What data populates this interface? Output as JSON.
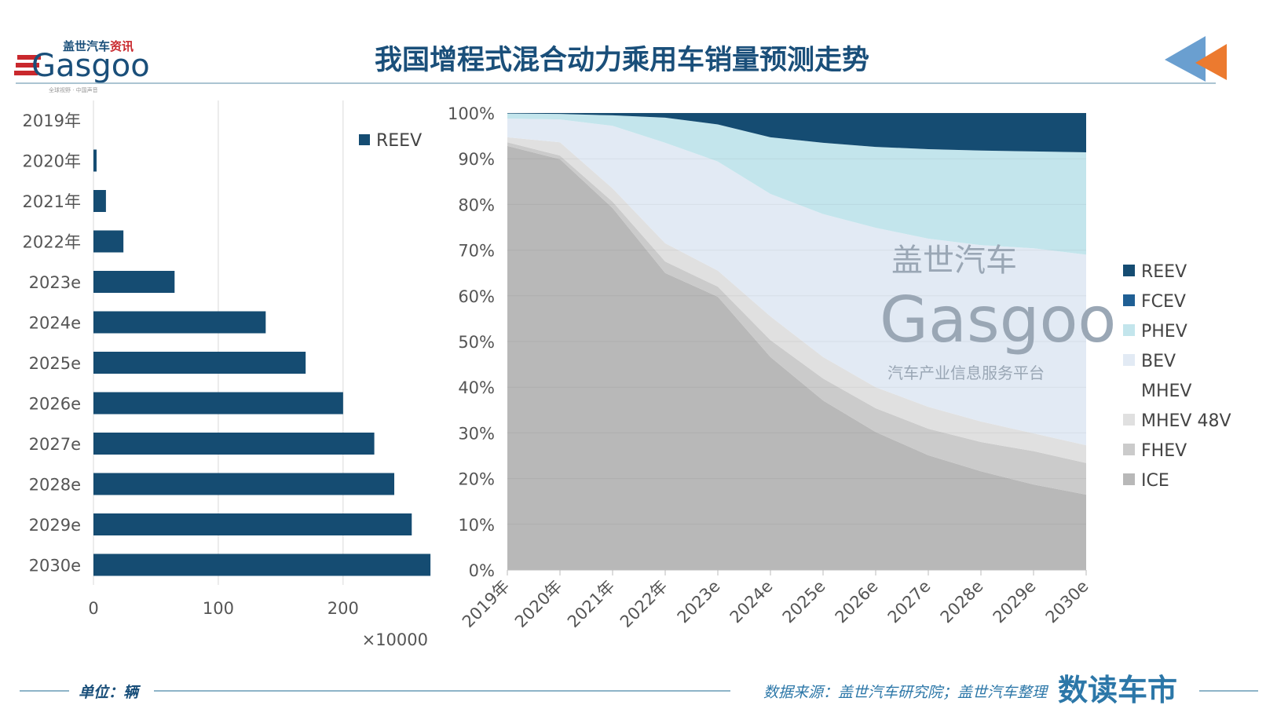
{
  "header": {
    "title": "我国增程式混合动力乘用车销量预测走势",
    "logo_text": "Gasgoo",
    "logo_cn": "盖世汽车资讯",
    "logo_tagline": "全球视野·中国声音",
    "title_color": "#1a4f7a"
  },
  "footer": {
    "unit": "单位：辆",
    "source": "数据来源：盖世汽车研究院；盖世汽车整理",
    "brand": "数读车市"
  },
  "watermark": {
    "text": "Gasgoo",
    "cn": "盖世汽车",
    "tagline": "汽车产业信息服务平台"
  },
  "chart_data": [
    {
      "type": "bar",
      "orientation": "horizontal",
      "categories": [
        "2019年",
        "2020年",
        "2021年",
        "2022年",
        "2023e",
        "2024e",
        "2025e",
        "2026e",
        "2027e",
        "2028e",
        "2029e",
        "2030e"
      ],
      "series": [
        {
          "name": "REEV",
          "values": [
            0,
            2.5,
            10,
            24,
            65,
            138,
            170,
            200,
            225,
            241,
            255,
            270
          ],
          "color": "#154c72"
        }
      ],
      "x_ticks": [
        "0",
        "100",
        "200"
      ],
      "xlim": [
        0,
        280
      ],
      "x_unit_label": "×10000",
      "legend_placement": "top-right",
      "grid": "vertical"
    },
    {
      "type": "area",
      "stacked": "percent",
      "categories": [
        "2019年",
        "2020年",
        "2021年",
        "2022年",
        "2023e",
        "2024e",
        "2025e",
        "2026e",
        "2027e",
        "2028e",
        "2029e",
        "2030e"
      ],
      "y_ticks": [
        "0%",
        "10%",
        "20%",
        "30%",
        "40%",
        "50%",
        "60%",
        "70%",
        "80%",
        "90%",
        "100%"
      ],
      "ylim": [
        0,
        100
      ],
      "grid": "horizontal",
      "legend_placement": "right",
      "series": [
        {
          "name": "ICE",
          "color": "#b8b8b8",
          "values": [
            92.8,
            89.9,
            79.2,
            65.0,
            59.8,
            46.6,
            37.1,
            30.2,
            25.1,
            21.6,
            18.7,
            16.5
          ]
        },
        {
          "name": "FHEV",
          "color": "#cbcbcb",
          "values": [
            0.8,
            0.8,
            1.4,
            2.5,
            2.2,
            3.7,
            4.8,
            5.2,
            5.8,
            6.4,
            7.3,
            6.9
          ]
        },
        {
          "name": "MHEV 48V",
          "color": "#e0e0e0",
          "values": [
            1.1,
            2.9,
            2.9,
            4.0,
            3.5,
            5.2,
            4.7,
            4.6,
            4.8,
            4.5,
            3.9,
            3.9
          ]
        },
        {
          "name": "MHEV",
          "color": "#ffffff",
          "values": [
            0,
            0,
            0,
            0,
            0,
            0,
            0,
            0,
            0,
            0,
            0,
            0
          ]
        },
        {
          "name": "BEV",
          "color": "#e2eaf4",
          "values": [
            4.1,
            5.0,
            13.7,
            22.0,
            23.9,
            26.8,
            31.3,
            34.9,
            36.8,
            38.6,
            40.5,
            41.7
          ]
        },
        {
          "name": "PHEV",
          "color": "#c3e5ec",
          "values": [
            1.1,
            1.2,
            2.3,
            5.5,
            8.1,
            12.4,
            15.6,
            17.7,
            19.6,
            20.7,
            21.2,
            22.4
          ]
        },
        {
          "name": "FCEV",
          "color": "#1f5f94",
          "values": [
            0,
            0,
            0,
            0,
            0,
            0,
            0,
            0,
            0,
            0,
            0,
            0
          ]
        },
        {
          "name": "REEV",
          "color": "#154c72",
          "values": [
            0.1,
            0.2,
            0.5,
            1.0,
            2.5,
            5.3,
            6.5,
            7.4,
            7.9,
            8.2,
            8.4,
            8.6
          ]
        }
      ],
      "legend_order": [
        "REEV",
        "FCEV",
        "PHEV",
        "BEV",
        "MHEV",
        "MHEV 48V",
        "FHEV",
        "ICE"
      ]
    }
  ]
}
